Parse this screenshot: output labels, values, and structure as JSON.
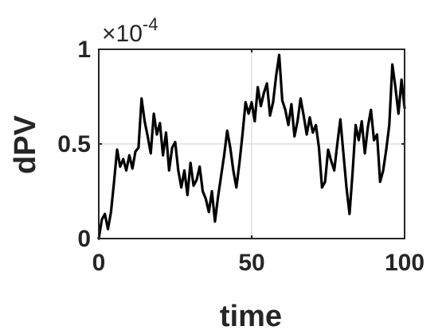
{
  "chart_data": {
    "type": "line",
    "title": "",
    "xlabel": "time",
    "ylabel": "dPV",
    "xlim": [
      0,
      100
    ],
    "ylim": [
      0,
      1
    ],
    "y_multiplier_label": "×10",
    "y_multiplier_exponent": "-4",
    "grid": true,
    "x_ticks": [
      0,
      50,
      100
    ],
    "y_ticks": [
      0,
      0.5,
      1
    ],
    "x_tick_labels": [
      "0",
      "50",
      "100"
    ],
    "y_tick_labels": [
      "0",
      "0.5",
      "1"
    ],
    "line_color": "#000000",
    "series": [
      {
        "x": [
          0,
          1,
          2,
          3,
          4,
          5,
          6,
          7,
          8,
          9,
          10,
          11,
          12,
          13,
          14,
          15,
          16,
          17,
          18,
          19,
          20,
          21,
          22,
          23,
          24,
          25,
          26,
          27,
          28,
          29,
          30,
          31,
          32,
          33,
          34,
          35,
          36,
          37,
          38,
          39,
          40,
          41,
          42,
          43,
          44,
          45,
          46,
          47,
          48,
          49,
          50,
          51,
          52,
          53,
          54,
          55,
          56,
          57,
          58,
          59,
          60,
          61,
          62,
          63,
          64,
          65,
          66,
          67,
          68,
          69,
          70,
          71,
          72,
          73,
          74,
          75,
          76,
          77,
          78,
          79,
          80,
          81,
          82,
          83,
          84,
          85,
          86,
          87,
          88,
          89,
          90,
          91,
          92,
          93,
          94,
          95,
          96,
          97,
          98,
          99,
          100
        ],
        "values": [
          0.0,
          0.1,
          0.13,
          0.05,
          0.14,
          0.3,
          0.47,
          0.38,
          0.42,
          0.36,
          0.44,
          0.37,
          0.46,
          0.48,
          0.74,
          0.62,
          0.54,
          0.45,
          0.66,
          0.55,
          0.61,
          0.44,
          0.56,
          0.36,
          0.48,
          0.51,
          0.36,
          0.27,
          0.36,
          0.23,
          0.4,
          0.28,
          0.31,
          0.38,
          0.25,
          0.21,
          0.14,
          0.25,
          0.09,
          0.22,
          0.33,
          0.44,
          0.57,
          0.48,
          0.36,
          0.27,
          0.4,
          0.55,
          0.72,
          0.66,
          0.72,
          0.62,
          0.8,
          0.7,
          0.77,
          0.82,
          0.65,
          0.72,
          0.86,
          0.97,
          0.73,
          0.68,
          0.6,
          0.71,
          0.54,
          0.62,
          0.74,
          0.65,
          0.55,
          0.64,
          0.56,
          0.6,
          0.48,
          0.27,
          0.3,
          0.47,
          0.41,
          0.36,
          0.5,
          0.63,
          0.45,
          0.27,
          0.13,
          0.35,
          0.6,
          0.52,
          0.62,
          0.45,
          0.59,
          0.68,
          0.52,
          0.55,
          0.3,
          0.36,
          0.47,
          0.6,
          0.92,
          0.8,
          0.66,
          0.84,
          0.69
        ]
      }
    ]
  }
}
